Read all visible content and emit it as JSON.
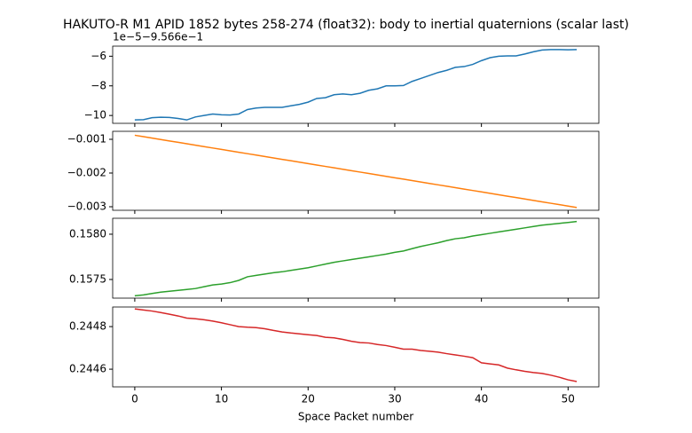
{
  "chart_data": [
    {
      "type": "line",
      "title": "HAKUTO-R M1 APID 1852 bytes 258-274 (float32): body to inertial quaternions (scalar last)",
      "offset_text": "1e−5−9.566e−1",
      "x": [
        0,
        1,
        2,
        3,
        4,
        5,
        6,
        7,
        8,
        9,
        10,
        11,
        12,
        13,
        14,
        15,
        16,
        17,
        18,
        19,
        20,
        21,
        22,
        23,
        24,
        25,
        26,
        27,
        28,
        29,
        30,
        31,
        32,
        33,
        34,
        35,
        36,
        37,
        38,
        39,
        40,
        41,
        42,
        43,
        44,
        45,
        46,
        47,
        48,
        49,
        50,
        51
      ],
      "series": [
        {
          "color": "#1f77b4",
          "values": [
            -10.3,
            -10.28,
            -10.15,
            -10.12,
            -10.13,
            -10.2,
            -10.3,
            -10.1,
            -10.0,
            -9.9,
            -9.95,
            -9.97,
            -9.9,
            -9.6,
            -9.5,
            -9.45,
            -9.45,
            -9.45,
            -9.35,
            -9.25,
            -9.1,
            -8.85,
            -8.8,
            -8.6,
            -8.55,
            -8.6,
            -8.5,
            -8.3,
            -8.2,
            -8.0,
            -8.0,
            -7.98,
            -7.7,
            -7.5,
            -7.3,
            -7.1,
            -6.95,
            -6.75,
            -6.7,
            -6.55,
            -6.3,
            -6.1,
            -6.0,
            -5.98,
            -5.98,
            -5.85,
            -5.7,
            -5.58,
            -5.55,
            -5.55,
            -5.57,
            -5.55
          ]
        }
      ],
      "xlim": [
        -2.55,
        53.55
      ],
      "xticks": [
        0,
        10,
        20,
        30,
        40,
        50
      ],
      "ylim": [
        -10.53,
        -5.32
      ],
      "yticks": [
        {
          "value": -10,
          "label": "−10"
        },
        {
          "value": -8,
          "label": "−8"
        },
        {
          "value": -6,
          "label": "−6"
        }
      ]
    },
    {
      "type": "line",
      "x": [
        0,
        1,
        2,
        3,
        4,
        5,
        6,
        7,
        8,
        9,
        10,
        11,
        12,
        13,
        14,
        15,
        16,
        17,
        18,
        19,
        20,
        21,
        22,
        23,
        24,
        25,
        26,
        27,
        28,
        29,
        30,
        31,
        32,
        33,
        34,
        35,
        36,
        37,
        38,
        39,
        40,
        41,
        42,
        43,
        44,
        45,
        46,
        47,
        48,
        49,
        50,
        51
      ],
      "series": [
        {
          "color": "#ff7f0e",
          "values": [
            -0.00088,
            -0.000922,
            -0.000964,
            -0.001006,
            -0.001048,
            -0.00109,
            -0.001132,
            -0.001174,
            -0.001216,
            -0.001258,
            -0.0013,
            -0.001342,
            -0.001384,
            -0.001426,
            -0.001468,
            -0.00151,
            -0.001552,
            -0.001594,
            -0.001636,
            -0.001678,
            -0.00172,
            -0.001762,
            -0.001804,
            -0.001846,
            -0.001888,
            -0.00193,
            -0.001972,
            -0.002014,
            -0.002056,
            -0.002098,
            -0.00214,
            -0.002182,
            -0.002224,
            -0.002266,
            -0.002308,
            -0.00235,
            -0.002392,
            -0.002434,
            -0.002476,
            -0.002518,
            -0.00256,
            -0.002602,
            -0.002644,
            -0.002686,
            -0.002728,
            -0.00277,
            -0.002812,
            -0.002854,
            -0.002896,
            -0.002938,
            -0.00298,
            -0.003022
          ]
        }
      ],
      "xlim": [
        -2.55,
        53.55
      ],
      "xticks": [
        0,
        10,
        20,
        30,
        40,
        50
      ],
      "ylim": [
        -0.003105,
        -0.000763
      ],
      "yticks": [
        {
          "value": -0.003,
          "label": "−0.003"
        },
        {
          "value": -0.002,
          "label": "−0.002"
        },
        {
          "value": -0.001,
          "label": "−0.001"
        }
      ]
    },
    {
      "type": "line",
      "x": [
        0,
        1,
        2,
        3,
        4,
        5,
        6,
        7,
        8,
        9,
        10,
        11,
        12,
        13,
        14,
        15,
        16,
        17,
        18,
        19,
        20,
        21,
        22,
        23,
        24,
        25,
        26,
        27,
        28,
        29,
        30,
        31,
        32,
        33,
        34,
        35,
        36,
        37,
        38,
        39,
        40,
        41,
        42,
        43,
        44,
        45,
        46,
        47,
        48,
        49,
        50,
        51
      ],
      "series": [
        {
          "color": "#2ca02c",
          "values": [
            0.15732,
            0.15733,
            0.157345,
            0.15736,
            0.15737,
            0.15738,
            0.15739,
            0.1574,
            0.15742,
            0.15744,
            0.15745,
            0.157465,
            0.15749,
            0.15753,
            0.157545,
            0.15756,
            0.157575,
            0.157585,
            0.1576,
            0.157615,
            0.15763,
            0.15765,
            0.15767,
            0.15769,
            0.157705,
            0.15772,
            0.157735,
            0.15775,
            0.157765,
            0.15778,
            0.1578,
            0.157815,
            0.15784,
            0.157865,
            0.157885,
            0.157905,
            0.15793,
            0.15795,
            0.15796,
            0.15798,
            0.157995,
            0.15801,
            0.158025,
            0.15804,
            0.158055,
            0.15807,
            0.158085,
            0.1581,
            0.15811,
            0.15812,
            0.15813,
            0.15814
          ]
        }
      ],
      "xlim": [
        -2.55,
        53.55
      ],
      "xticks": [
        0,
        10,
        20,
        30,
        40,
        50
      ],
      "ylim": [
        0.157294,
        0.158176
      ],
      "yticks": [
        0.1575,
        {
          "value": 0.158,
          "label": "0.1580"
        }
      ]
    },
    {
      "type": "line",
      "xlabel": "Space Packet number",
      "x": [
        0,
        1,
        2,
        3,
        4,
        5,
        6,
        7,
        8,
        9,
        10,
        11,
        12,
        13,
        14,
        15,
        16,
        17,
        18,
        19,
        20,
        21,
        22,
        23,
        24,
        25,
        26,
        27,
        28,
        29,
        30,
        31,
        32,
        33,
        34,
        35,
        36,
        37,
        38,
        39,
        40,
        41,
        42,
        43,
        44,
        45,
        46,
        47,
        48,
        49,
        50,
        51
      ],
      "series": [
        {
          "color": "#d62728",
          "values": [
            0.244883,
            0.244878,
            0.244873,
            0.244866,
            0.244858,
            0.24485,
            0.24484,
            0.244837,
            0.244832,
            0.244826,
            0.244818,
            0.244809,
            0.2448,
            0.244797,
            0.244795,
            0.24479,
            0.244782,
            0.244775,
            0.24477,
            0.244766,
            0.244762,
            0.244758,
            0.24475,
            0.244747,
            0.24474,
            0.244731,
            0.244725,
            0.244723,
            0.244716,
            0.244711,
            0.244703,
            0.244694,
            0.244694,
            0.244688,
            0.244684,
            0.24468,
            0.244673,
            0.244667,
            0.244661,
            0.244654,
            0.24463,
            0.244625,
            0.24462,
            0.244605,
            0.244597,
            0.24459,
            0.244584,
            0.24458,
            0.244572,
            0.244562,
            0.24455,
            0.244542
          ]
        }
      ],
      "xlim": [
        -2.55,
        53.55
      ],
      "xticks": [
        0,
        10,
        20,
        30,
        40,
        50
      ],
      "ylim": [
        0.244517,
        0.244892
      ],
      "yticks": [
        0.2446,
        0.2448
      ]
    }
  ]
}
